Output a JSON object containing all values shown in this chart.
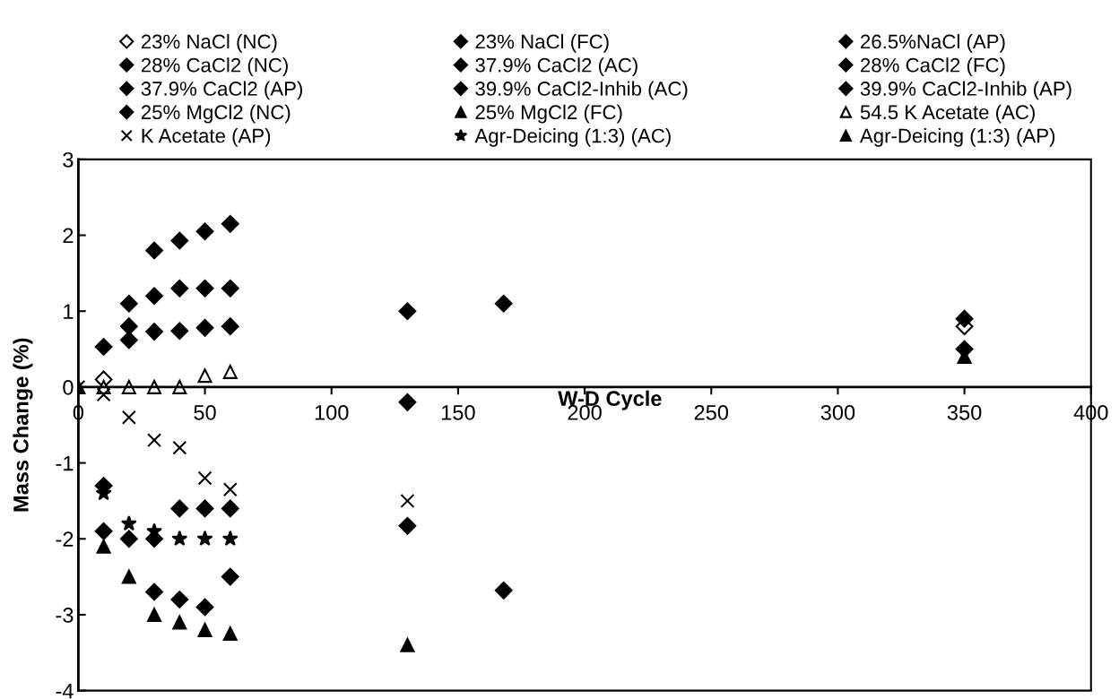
{
  "chart_data": {
    "type": "scatter",
    "xlabel": "W-D Cycle",
    "ylabel": "Mass Change (%)",
    "xlim": [
      0,
      400
    ],
    "xticks": [
      0,
      50,
      100,
      150,
      200,
      250,
      300,
      350,
      400
    ],
    "ylim": [
      -4,
      3
    ],
    "yticks": [
      -4,
      -3,
      -2,
      -1,
      0,
      1,
      2,
      3
    ],
    "grid": false,
    "legend": "top",
    "series": [
      {
        "name": "23% NaCl (NC)",
        "color": "#000000",
        "marker": "diamond",
        "x": [
          10,
          350
        ],
        "values": [
          0.1,
          0.8
        ]
      },
      {
        "name": "23% NaCl (FC)",
        "color": "#000000",
        "marker": "diamond",
        "x": [
          168
        ],
        "values": [
          1.1
        ]
      },
      {
        "name": "26.5%NaCl (AP)",
        "color": "#000000",
        "marker": "diamond",
        "x": [
          10,
          20,
          30,
          40,
          50,
          60,
          130
        ],
        "values": [
          0.53,
          0.62,
          0.73,
          0.74,
          0.78,
          0.8,
          1.0
        ]
      },
      {
        "name": "28% CaCl2 (NC)",
        "color": "#000000",
        "marker": "diamond",
        "x": [
          10,
          168
        ],
        "values": [
          -1.3,
          -2.68
        ]
      },
      {
        "name": "37.9% CaCl2 (AC)",
        "color": "#000000",
        "marker": "diamond",
        "x": [
          20,
          30,
          40,
          50,
          60
        ],
        "values": [
          0.8,
          1.2,
          1.3,
          1.3,
          1.3
        ]
      },
      {
        "name": "28% CaCl2 (FC)",
        "color": "#000000",
        "marker": "diamond",
        "x": [
          10,
          20,
          30,
          40,
          50,
          60,
          130
        ],
        "values": [
          -1.9,
          -2.0,
          -2.0,
          -1.6,
          -1.6,
          -1.6,
          -0.2
        ]
      },
      {
        "name": "37.9% CaCl2 (AP)",
        "color": "#000000",
        "marker": "diamond",
        "x": [
          20,
          30,
          40,
          50,
          60
        ],
        "values": [
          1.1,
          1.8,
          1.93,
          2.05,
          2.15
        ]
      },
      {
        "name": "39.9% CaCl2-Inhib (AC)",
        "color": "#000000",
        "marker": "diamond",
        "x": [
          30,
          40,
          50,
          60,
          130
        ],
        "values": [
          -2.7,
          -2.8,
          -2.9,
          -2.5,
          -1.83
        ]
      },
      {
        "name": "39.9% CaCl2-Inhib (AP)",
        "color": "#000000",
        "marker": "diamond",
        "x": [
          350
        ],
        "values": [
          0.5
        ]
      },
      {
        "name": "25% MgCl2 (NC)",
        "color": "#000000",
        "marker": "diamond",
        "x": [
          350
        ],
        "values": [
          0.9
        ]
      },
      {
        "name": "25% MgCl2 (FC)",
        "color": "#000000",
        "marker": "triangle",
        "x": [
          350
        ],
        "values": [
          0.4
        ]
      },
      {
        "name": "54.5 K Acetate (AC)",
        "color": "#000000",
        "marker": "triangle",
        "x": [
          10,
          20,
          30,
          40,
          50,
          60
        ],
        "values": [
          0,
          0,
          0,
          0,
          0.15,
          0.2
        ]
      },
      {
        "name": "K Acetate (AP)",
        "color": "#000000",
        "marker": "cross",
        "x": [
          0,
          10,
          20,
          30,
          40,
          50,
          60,
          130
        ],
        "values": [
          0,
          -0.1,
          -0.4,
          -0.7,
          -0.8,
          -1.2,
          -1.35,
          -1.5
        ]
      },
      {
        "name": "Agr-Deicing (1:3) (AC)",
        "color": "#000000",
        "marker": "star",
        "x": [
          10,
          20,
          30,
          40,
          50,
          60
        ],
        "values": [
          -1.4,
          -1.8,
          -1.9,
          -2.0,
          -2.0,
          -2.0
        ]
      },
      {
        "name": "Agr-Deicing (1:3) (AP)",
        "color": "#000000",
        "marker": "triangle",
        "x": [
          0,
          10,
          20,
          30,
          40,
          50,
          60,
          130
        ],
        "values": [
          0,
          -2.1,
          -2.5,
          -3.0,
          -3.1,
          -3.2,
          -3.25,
          -3.4
        ]
      }
    ]
  }
}
